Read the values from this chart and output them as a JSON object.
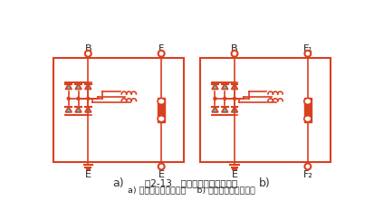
{
  "bg_color": "#ffffff",
  "circuit_color": "#d94020",
  "diode_fill": "#40c8c8",
  "text_color": "#333333",
  "title_text": "图2-13   交流发电机的搭铁方式",
  "subtitle_text": "a) 内搭铁型交流发电机    b) 外搭铁型交流发电机",
  "label_a": "a)",
  "label_b": "b)"
}
